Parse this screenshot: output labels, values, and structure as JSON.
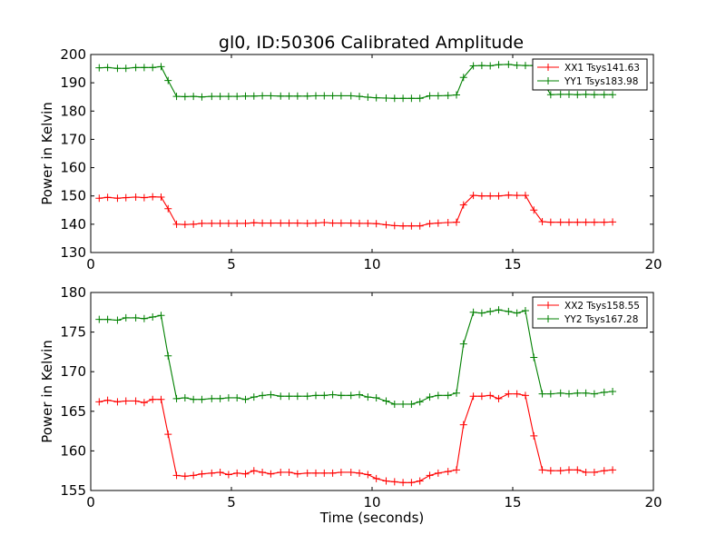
{
  "figure": {
    "title": "gl0, ID:50306 Calibrated Amplitude"
  },
  "colors": {
    "series_xx": "#ff0000",
    "series_yy": "#008000",
    "axes": "#000000",
    "background": "#ffffff"
  },
  "chart_data": [
    {
      "type": "line",
      "title": "gl0, ID:50306 Calibrated Amplitude",
      "xlabel": "",
      "ylabel": "Power in Kelvin",
      "xlim": [
        0,
        20
      ],
      "ylim": [
        130,
        200
      ],
      "xticks": [
        0,
        5,
        10,
        15,
        20
      ],
      "yticks": [
        130,
        140,
        150,
        160,
        170,
        180,
        190,
        200
      ],
      "grid": false,
      "legend_position": "top-right",
      "marker": "+",
      "x": [
        0.3,
        0.6,
        0.95,
        1.25,
        1.6,
        1.9,
        2.2,
        2.5,
        2.75,
        3.05,
        3.35,
        3.65,
        3.95,
        4.3,
        4.6,
        4.9,
        5.2,
        5.5,
        5.8,
        6.1,
        6.4,
        6.75,
        7.05,
        7.35,
        7.7,
        8.0,
        8.3,
        8.6,
        8.9,
        9.25,
        9.55,
        9.85,
        10.15,
        10.5,
        10.8,
        11.1,
        11.4,
        11.7,
        12.05,
        12.35,
        12.7,
        13.0,
        13.25,
        13.6,
        13.9,
        14.2,
        14.5,
        14.85,
        15.15,
        15.45,
        15.75,
        16.05,
        16.35,
        16.7,
        17.0,
        17.3,
        17.6,
        17.9,
        18.25,
        18.55
      ],
      "series": [
        {
          "name": "XX1 Tsys141.63",
          "color": "#ff0000",
          "values": [
            149.2,
            149.5,
            149.2,
            149.4,
            149.6,
            149.4,
            149.7,
            149.6,
            145.5,
            140.0,
            139.9,
            140.0,
            140.3,
            140.3,
            140.3,
            140.3,
            140.3,
            140.3,
            140.5,
            140.4,
            140.4,
            140.4,
            140.4,
            140.4,
            140.3,
            140.4,
            140.6,
            140.4,
            140.4,
            140.4,
            140.3,
            140.3,
            140.2,
            139.8,
            139.5,
            139.4,
            139.4,
            139.4,
            140.2,
            140.4,
            140.6,
            140.7,
            146.8,
            150.2,
            150.0,
            150.0,
            150.0,
            150.3,
            150.2,
            150.2,
            145.0,
            140.9,
            140.7,
            140.7,
            140.7,
            140.7,
            140.7,
            140.7,
            140.7,
            140.8
          ]
        },
        {
          "name": "YY1 Tsys183.98",
          "color": "#008000",
          "values": [
            195.3,
            195.4,
            195.1,
            195.1,
            195.4,
            195.4,
            195.4,
            195.7,
            190.8,
            185.2,
            185.1,
            185.2,
            185.0,
            185.2,
            185.2,
            185.2,
            185.2,
            185.3,
            185.3,
            185.4,
            185.4,
            185.3,
            185.3,
            185.3,
            185.3,
            185.4,
            185.4,
            185.4,
            185.4,
            185.4,
            185.2,
            184.9,
            184.7,
            184.6,
            184.5,
            184.5,
            184.5,
            184.5,
            185.4,
            185.4,
            185.5,
            185.7,
            191.9,
            196.0,
            196.1,
            196.0,
            196.4,
            196.5,
            196.2,
            196.1,
            196.1,
            190.6,
            185.8,
            185.9,
            185.9,
            185.8,
            185.9,
            185.8,
            185.8,
            185.8
          ]
        }
      ]
    },
    {
      "type": "line",
      "title": "",
      "xlabel": "Time (seconds)",
      "ylabel": "Power in Kelvin",
      "xlim": [
        0,
        20
      ],
      "ylim": [
        155,
        180
      ],
      "xticks": [
        0,
        5,
        10,
        15,
        20
      ],
      "yticks": [
        155,
        160,
        165,
        170,
        175,
        180
      ],
      "grid": false,
      "legend_position": "top-right",
      "marker": "+",
      "x": [
        0.3,
        0.6,
        0.95,
        1.25,
        1.6,
        1.9,
        2.2,
        2.5,
        2.75,
        3.05,
        3.35,
        3.65,
        3.95,
        4.3,
        4.6,
        4.9,
        5.2,
        5.5,
        5.8,
        6.1,
        6.4,
        6.75,
        7.05,
        7.35,
        7.7,
        8.0,
        8.3,
        8.6,
        8.9,
        9.25,
        9.55,
        9.85,
        10.15,
        10.5,
        10.8,
        11.1,
        11.4,
        11.7,
        12.05,
        12.35,
        12.7,
        13.0,
        13.25,
        13.6,
        13.9,
        14.2,
        14.5,
        14.85,
        15.15,
        15.45,
        15.75,
        16.05,
        16.35,
        16.7,
        17.0,
        17.3,
        17.6,
        17.9,
        18.25,
        18.55
      ],
      "series": [
        {
          "name": "XX2 Tsys158.55",
          "color": "#ff0000",
          "values": [
            166.2,
            166.4,
            166.2,
            166.3,
            166.3,
            166.1,
            166.5,
            166.5,
            162.1,
            156.9,
            156.8,
            156.9,
            157.1,
            157.2,
            157.3,
            157.0,
            157.2,
            157.1,
            157.5,
            157.3,
            157.1,
            157.3,
            157.3,
            157.1,
            157.2,
            157.2,
            157.2,
            157.2,
            157.3,
            157.3,
            157.2,
            157.0,
            156.5,
            156.2,
            156.1,
            156.0,
            156.0,
            156.2,
            156.9,
            157.2,
            157.4,
            157.6,
            163.3,
            166.9,
            166.9,
            167.0,
            166.6,
            167.2,
            167.2,
            167.0,
            161.9,
            157.6,
            157.5,
            157.5,
            157.6,
            157.6,
            157.3,
            157.3,
            157.5,
            157.6
          ]
        },
        {
          "name": "YY2 Tsys167.28",
          "color": "#008000",
          "values": [
            176.6,
            176.6,
            176.5,
            176.8,
            176.8,
            176.7,
            176.9,
            177.1,
            172.0,
            166.6,
            166.7,
            166.5,
            166.5,
            166.6,
            166.6,
            166.7,
            166.7,
            166.5,
            166.8,
            167.0,
            167.1,
            166.9,
            166.9,
            166.9,
            166.9,
            167.0,
            167.0,
            167.1,
            167.0,
            167.0,
            167.1,
            166.8,
            166.7,
            166.3,
            165.9,
            165.9,
            165.9,
            166.2,
            166.8,
            167.0,
            167.0,
            167.3,
            173.5,
            177.5,
            177.4,
            177.6,
            177.8,
            177.6,
            177.4,
            177.7,
            171.8,
            167.2,
            167.2,
            167.3,
            167.2,
            167.3,
            167.3,
            167.2,
            167.4,
            167.5
          ]
        }
      ]
    }
  ]
}
